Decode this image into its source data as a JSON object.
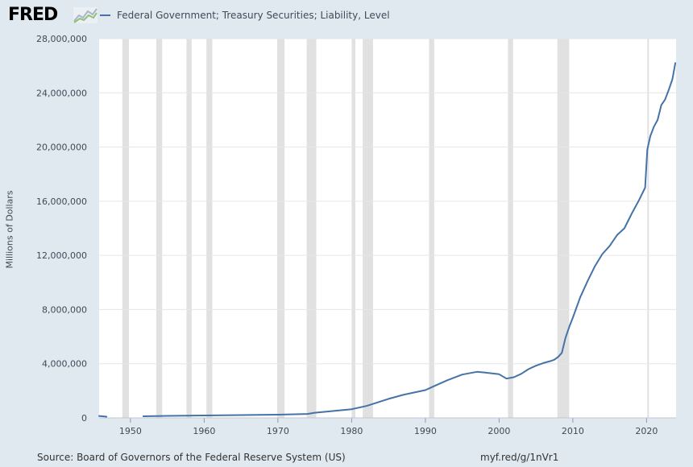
{
  "header": {
    "logo_text": "FRED",
    "legend_label": "Federal Government; Treasury Securities; Liability, Level"
  },
  "footer": {
    "source": "Source: Board of Governors of the Federal Reserve System (US)",
    "url": "myf.red/g/1nVr1"
  },
  "colors": {
    "series": "#4572a7",
    "recession": "#e1e1e1",
    "grid": "#e6e6e6",
    "plot_background": "#ffffff",
    "page_background": "#e1e9f0"
  },
  "chart_data": {
    "type": "line",
    "title": "",
    "xlabel": "",
    "ylabel": "Millions of Dollars",
    "xlim": [
      1945.75,
      2024.0
    ],
    "ylim": [
      0,
      28000000
    ],
    "grid": true,
    "legend": "top-left",
    "x_ticks": [
      1950,
      1960,
      1970,
      1980,
      1990,
      2000,
      2010,
      2020
    ],
    "y_ticks": [
      0,
      4000000,
      8000000,
      12000000,
      16000000,
      20000000,
      24000000,
      28000000
    ],
    "y_tick_labels": [
      "0",
      "4,000,000",
      "8,000,000",
      "12,000,000",
      "16,000,000",
      "20,000,000",
      "24,000,000",
      "28,000,000"
    ],
    "recessions": [
      [
        1948.9,
        1949.8
      ],
      [
        1953.5,
        1954.3
      ],
      [
        1957.6,
        1958.3
      ],
      [
        1960.3,
        1961.1
      ],
      [
        1969.9,
        1970.9
      ],
      [
        1973.9,
        1975.2
      ],
      [
        1980.0,
        1980.5
      ],
      [
        1981.5,
        1982.9
      ],
      [
        1990.5,
        1991.2
      ],
      [
        2001.2,
        2001.9
      ],
      [
        2007.9,
        2009.5
      ],
      [
        2020.1,
        2020.3
      ]
    ],
    "series": [
      {
        "name": "Federal Government; Treasury Securities; Liability, Level",
        "segments": [
          {
            "x": [
              1945.75,
              1946.75
            ],
            "y": [
              140000,
              90000
            ]
          },
          {
            "x": [
              1951.75,
              1955,
              1960,
              1965,
              1970,
              1974,
              1975,
              1977,
              1980,
              1982,
              1983,
              1985,
              1987,
              1988,
              1990,
              1991,
              1993,
              1995,
              1997,
              1998,
              2000,
              2001,
              2002,
              2003,
              2004,
              2005,
              2006,
              2007,
              2007.5,
              2008,
              2008.5,
              2009,
              2009.5,
              2010,
              2011,
              2012,
              2013,
              2014,
              2015,
              2016,
              2017,
              2018,
              2019,
              2019.8,
              2020.1,
              2020.5,
              2021,
              2021.5,
              2022,
              2022.5,
              2023,
              2023.5,
              2023.9
            ],
            "y": [
              120000,
              150000,
              180000,
              210000,
              240000,
              290000,
              380000,
              480000,
              640000,
              880000,
              1050000,
              1400000,
              1700000,
              1820000,
              2050000,
              2300000,
              2780000,
              3200000,
              3400000,
              3350000,
              3220000,
              2900000,
              3000000,
              3250000,
              3600000,
              3850000,
              4050000,
              4200000,
              4300000,
              4500000,
              4800000,
              5900000,
              6700000,
              7400000,
              8900000,
              10100000,
              11200000,
              12100000,
              12700000,
              13500000,
              14000000,
              15100000,
              16100000,
              17000000,
              19800000,
              20800000,
              21500000,
              22000000,
              23100000,
              23500000,
              24200000,
              25000000,
              26200000
            ]
          }
        ]
      }
    ]
  }
}
